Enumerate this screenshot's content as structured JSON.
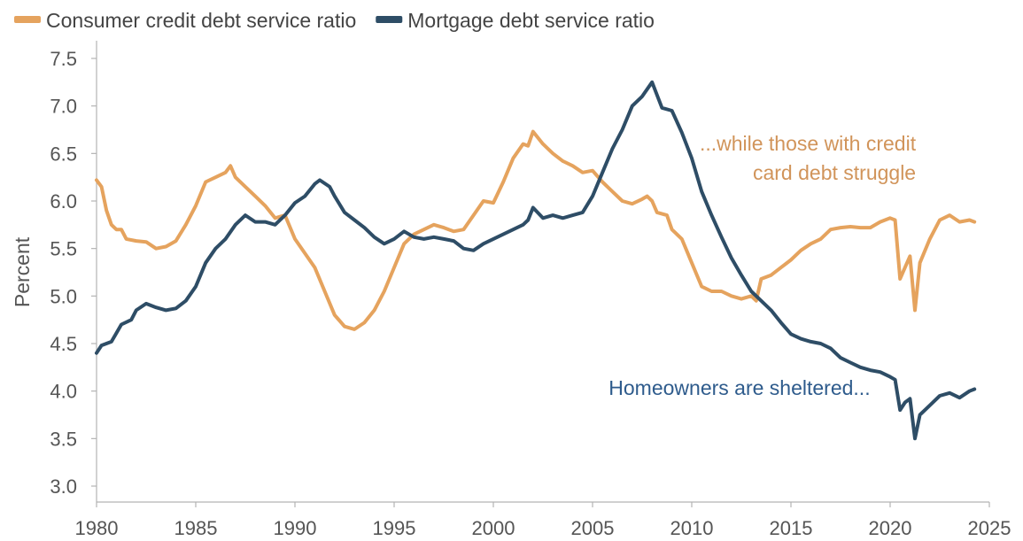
{
  "chart_data": {
    "type": "line",
    "title": "",
    "xlabel": "",
    "ylabel": "Percent",
    "xlim": [
      1980,
      2025
    ],
    "ylim": [
      3.0,
      7.5
    ],
    "x_ticks": [
      "1980",
      "1985",
      "1990",
      "1995",
      "2000",
      "2005",
      "2010",
      "2015",
      "2020",
      "2025"
    ],
    "y_ticks": [
      "3.0",
      "3.5",
      "4.0",
      "4.5",
      "5.0",
      "5.5",
      "6.0",
      "6.5",
      "7.0",
      "7.5"
    ],
    "grid": false,
    "legend_position": "top-left",
    "series": [
      {
        "name": "Consumer credit debt service ratio",
        "color": "#E5A35E",
        "points": [
          [
            1980.0,
            6.22
          ],
          [
            1980.25,
            6.15
          ],
          [
            1980.5,
            5.9
          ],
          [
            1980.75,
            5.75
          ],
          [
            1981.0,
            5.7
          ],
          [
            1981.25,
            5.7
          ],
          [
            1981.5,
            5.6
          ],
          [
            1982.0,
            5.58
          ],
          [
            1982.5,
            5.57
          ],
          [
            1983.0,
            5.5
          ],
          [
            1983.5,
            5.52
          ],
          [
            1984.0,
            5.58
          ],
          [
            1984.5,
            5.75
          ],
          [
            1985.0,
            5.95
          ],
          [
            1985.5,
            6.2
          ],
          [
            1986.0,
            6.25
          ],
          [
            1986.5,
            6.3
          ],
          [
            1986.75,
            6.37
          ],
          [
            1987.0,
            6.25
          ],
          [
            1987.5,
            6.15
          ],
          [
            1988.0,
            6.05
          ],
          [
            1988.5,
            5.95
          ],
          [
            1989.0,
            5.82
          ],
          [
            1989.5,
            5.85
          ],
          [
            1990.0,
            5.6
          ],
          [
            1990.5,
            5.45
          ],
          [
            1991.0,
            5.3
          ],
          [
            1991.5,
            5.05
          ],
          [
            1992.0,
            4.8
          ],
          [
            1992.5,
            4.68
          ],
          [
            1993.0,
            4.65
          ],
          [
            1993.5,
            4.72
          ],
          [
            1994.0,
            4.85
          ],
          [
            1994.5,
            5.05
          ],
          [
            1995.0,
            5.3
          ],
          [
            1995.5,
            5.55
          ],
          [
            1996.0,
            5.65
          ],
          [
            1996.5,
            5.7
          ],
          [
            1997.0,
            5.75
          ],
          [
            1997.5,
            5.72
          ],
          [
            1998.0,
            5.68
          ],
          [
            1998.5,
            5.7
          ],
          [
            1999.0,
            5.85
          ],
          [
            1999.5,
            6.0
          ],
          [
            2000.0,
            5.98
          ],
          [
            2000.5,
            6.2
          ],
          [
            2001.0,
            6.45
          ],
          [
            2001.5,
            6.6
          ],
          [
            2001.75,
            6.58
          ],
          [
            2002.0,
            6.73
          ],
          [
            2002.5,
            6.6
          ],
          [
            2003.0,
            6.5
          ],
          [
            2003.5,
            6.42
          ],
          [
            2004.0,
            6.37
          ],
          [
            2004.5,
            6.3
          ],
          [
            2005.0,
            6.32
          ],
          [
            2005.5,
            6.2
          ],
          [
            2006.0,
            6.1
          ],
          [
            2006.5,
            6.0
          ],
          [
            2007.0,
            5.97
          ],
          [
            2007.5,
            6.02
          ],
          [
            2007.75,
            6.05
          ],
          [
            2008.0,
            6.0
          ],
          [
            2008.25,
            5.88
          ],
          [
            2008.75,
            5.85
          ],
          [
            2009.0,
            5.7
          ],
          [
            2009.5,
            5.6
          ],
          [
            2010.0,
            5.35
          ],
          [
            2010.5,
            5.1
          ],
          [
            2011.0,
            5.05
          ],
          [
            2011.5,
            5.05
          ],
          [
            2012.0,
            5.0
          ],
          [
            2012.5,
            4.97
          ],
          [
            2013.0,
            5.0
          ],
          [
            2013.25,
            4.95
          ],
          [
            2013.5,
            5.18
          ],
          [
            2014.0,
            5.22
          ],
          [
            2014.5,
            5.3
          ],
          [
            2015.0,
            5.38
          ],
          [
            2015.5,
            5.48
          ],
          [
            2016.0,
            5.55
          ],
          [
            2016.5,
            5.6
          ],
          [
            2017.0,
            5.7
          ],
          [
            2017.5,
            5.72
          ],
          [
            2018.0,
            5.73
          ],
          [
            2018.5,
            5.72
          ],
          [
            2019.0,
            5.72
          ],
          [
            2019.5,
            5.78
          ],
          [
            2020.0,
            5.82
          ],
          [
            2020.25,
            5.8
          ],
          [
            2020.5,
            5.18
          ],
          [
            2020.75,
            5.3
          ],
          [
            2021.0,
            5.42
          ],
          [
            2021.25,
            4.85
          ],
          [
            2021.5,
            5.35
          ],
          [
            2022.0,
            5.6
          ],
          [
            2022.5,
            5.8
          ],
          [
            2023.0,
            5.85
          ],
          [
            2023.5,
            5.78
          ],
          [
            2024.0,
            5.8
          ],
          [
            2024.25,
            5.78
          ]
        ]
      },
      {
        "name": "Mortgage debt service ratio",
        "color": "#2E4D66",
        "points": [
          [
            1980.0,
            4.4
          ],
          [
            1980.25,
            4.48
          ],
          [
            1980.75,
            4.52
          ],
          [
            1981.25,
            4.7
          ],
          [
            1981.75,
            4.75
          ],
          [
            1982.0,
            4.85
          ],
          [
            1982.5,
            4.92
          ],
          [
            1983.0,
            4.88
          ],
          [
            1983.5,
            4.85
          ],
          [
            1984.0,
            4.87
          ],
          [
            1984.5,
            4.95
          ],
          [
            1985.0,
            5.1
          ],
          [
            1985.5,
            5.35
          ],
          [
            1986.0,
            5.5
          ],
          [
            1986.5,
            5.6
          ],
          [
            1987.0,
            5.75
          ],
          [
            1987.5,
            5.85
          ],
          [
            1988.0,
            5.78
          ],
          [
            1988.5,
            5.78
          ],
          [
            1989.0,
            5.75
          ],
          [
            1989.5,
            5.85
          ],
          [
            1990.0,
            5.98
          ],
          [
            1990.5,
            6.05
          ],
          [
            1991.0,
            6.18
          ],
          [
            1991.25,
            6.22
          ],
          [
            1991.75,
            6.15
          ],
          [
            1992.0,
            6.05
          ],
          [
            1992.5,
            5.88
          ],
          [
            1993.0,
            5.8
          ],
          [
            1993.5,
            5.72
          ],
          [
            1994.0,
            5.62
          ],
          [
            1994.5,
            5.55
          ],
          [
            1995.0,
            5.6
          ],
          [
            1995.5,
            5.68
          ],
          [
            1996.0,
            5.62
          ],
          [
            1996.5,
            5.6
          ],
          [
            1997.0,
            5.62
          ],
          [
            1997.5,
            5.6
          ],
          [
            1998.0,
            5.58
          ],
          [
            1998.5,
            5.5
          ],
          [
            1999.0,
            5.48
          ],
          [
            1999.5,
            5.55
          ],
          [
            2000.0,
            5.6
          ],
          [
            2000.5,
            5.65
          ],
          [
            2001.0,
            5.7
          ],
          [
            2001.5,
            5.75
          ],
          [
            2001.75,
            5.8
          ],
          [
            2002.0,
            5.93
          ],
          [
            2002.5,
            5.82
          ],
          [
            2003.0,
            5.85
          ],
          [
            2003.5,
            5.82
          ],
          [
            2004.0,
            5.85
          ],
          [
            2004.5,
            5.88
          ],
          [
            2005.0,
            6.05
          ],
          [
            2005.5,
            6.3
          ],
          [
            2006.0,
            6.55
          ],
          [
            2006.5,
            6.75
          ],
          [
            2007.0,
            7.0
          ],
          [
            2007.5,
            7.1
          ],
          [
            2008.0,
            7.25
          ],
          [
            2008.5,
            6.98
          ],
          [
            2009.0,
            6.95
          ],
          [
            2009.5,
            6.72
          ],
          [
            2010.0,
            6.45
          ],
          [
            2010.5,
            6.1
          ],
          [
            2011.0,
            5.85
          ],
          [
            2011.5,
            5.62
          ],
          [
            2012.0,
            5.4
          ],
          [
            2012.5,
            5.22
          ],
          [
            2013.0,
            5.05
          ],
          [
            2013.5,
            4.95
          ],
          [
            2014.0,
            4.85
          ],
          [
            2014.5,
            4.72
          ],
          [
            2015.0,
            4.6
          ],
          [
            2015.5,
            4.55
          ],
          [
            2016.0,
            4.52
          ],
          [
            2016.5,
            4.5
          ],
          [
            2017.0,
            4.45
          ],
          [
            2017.5,
            4.35
          ],
          [
            2018.0,
            4.3
          ],
          [
            2018.5,
            4.25
          ],
          [
            2019.0,
            4.22
          ],
          [
            2019.5,
            4.2
          ],
          [
            2020.0,
            4.15
          ],
          [
            2020.25,
            4.12
          ],
          [
            2020.5,
            3.8
          ],
          [
            2020.75,
            3.88
          ],
          [
            2021.0,
            3.92
          ],
          [
            2021.25,
            3.5
          ],
          [
            2021.5,
            3.75
          ],
          [
            2022.0,
            3.85
          ],
          [
            2022.5,
            3.95
          ],
          [
            2023.0,
            3.98
          ],
          [
            2023.5,
            3.93
          ],
          [
            2024.0,
            4.0
          ],
          [
            2024.25,
            4.02
          ]
        ]
      }
    ],
    "annotations": [
      {
        "lines": [
          "...while those with credit",
          "card debt struggle"
        ],
        "color": "#D1945A",
        "anchor_x": 2021.3,
        "anchor_y": 6.53,
        "align": "right"
      },
      {
        "lines": [
          "Homeowners are sheltered..."
        ],
        "color": "#2E5B8C",
        "anchor_x": 2019.0,
        "anchor_y": 3.96,
        "align": "right"
      }
    ]
  }
}
